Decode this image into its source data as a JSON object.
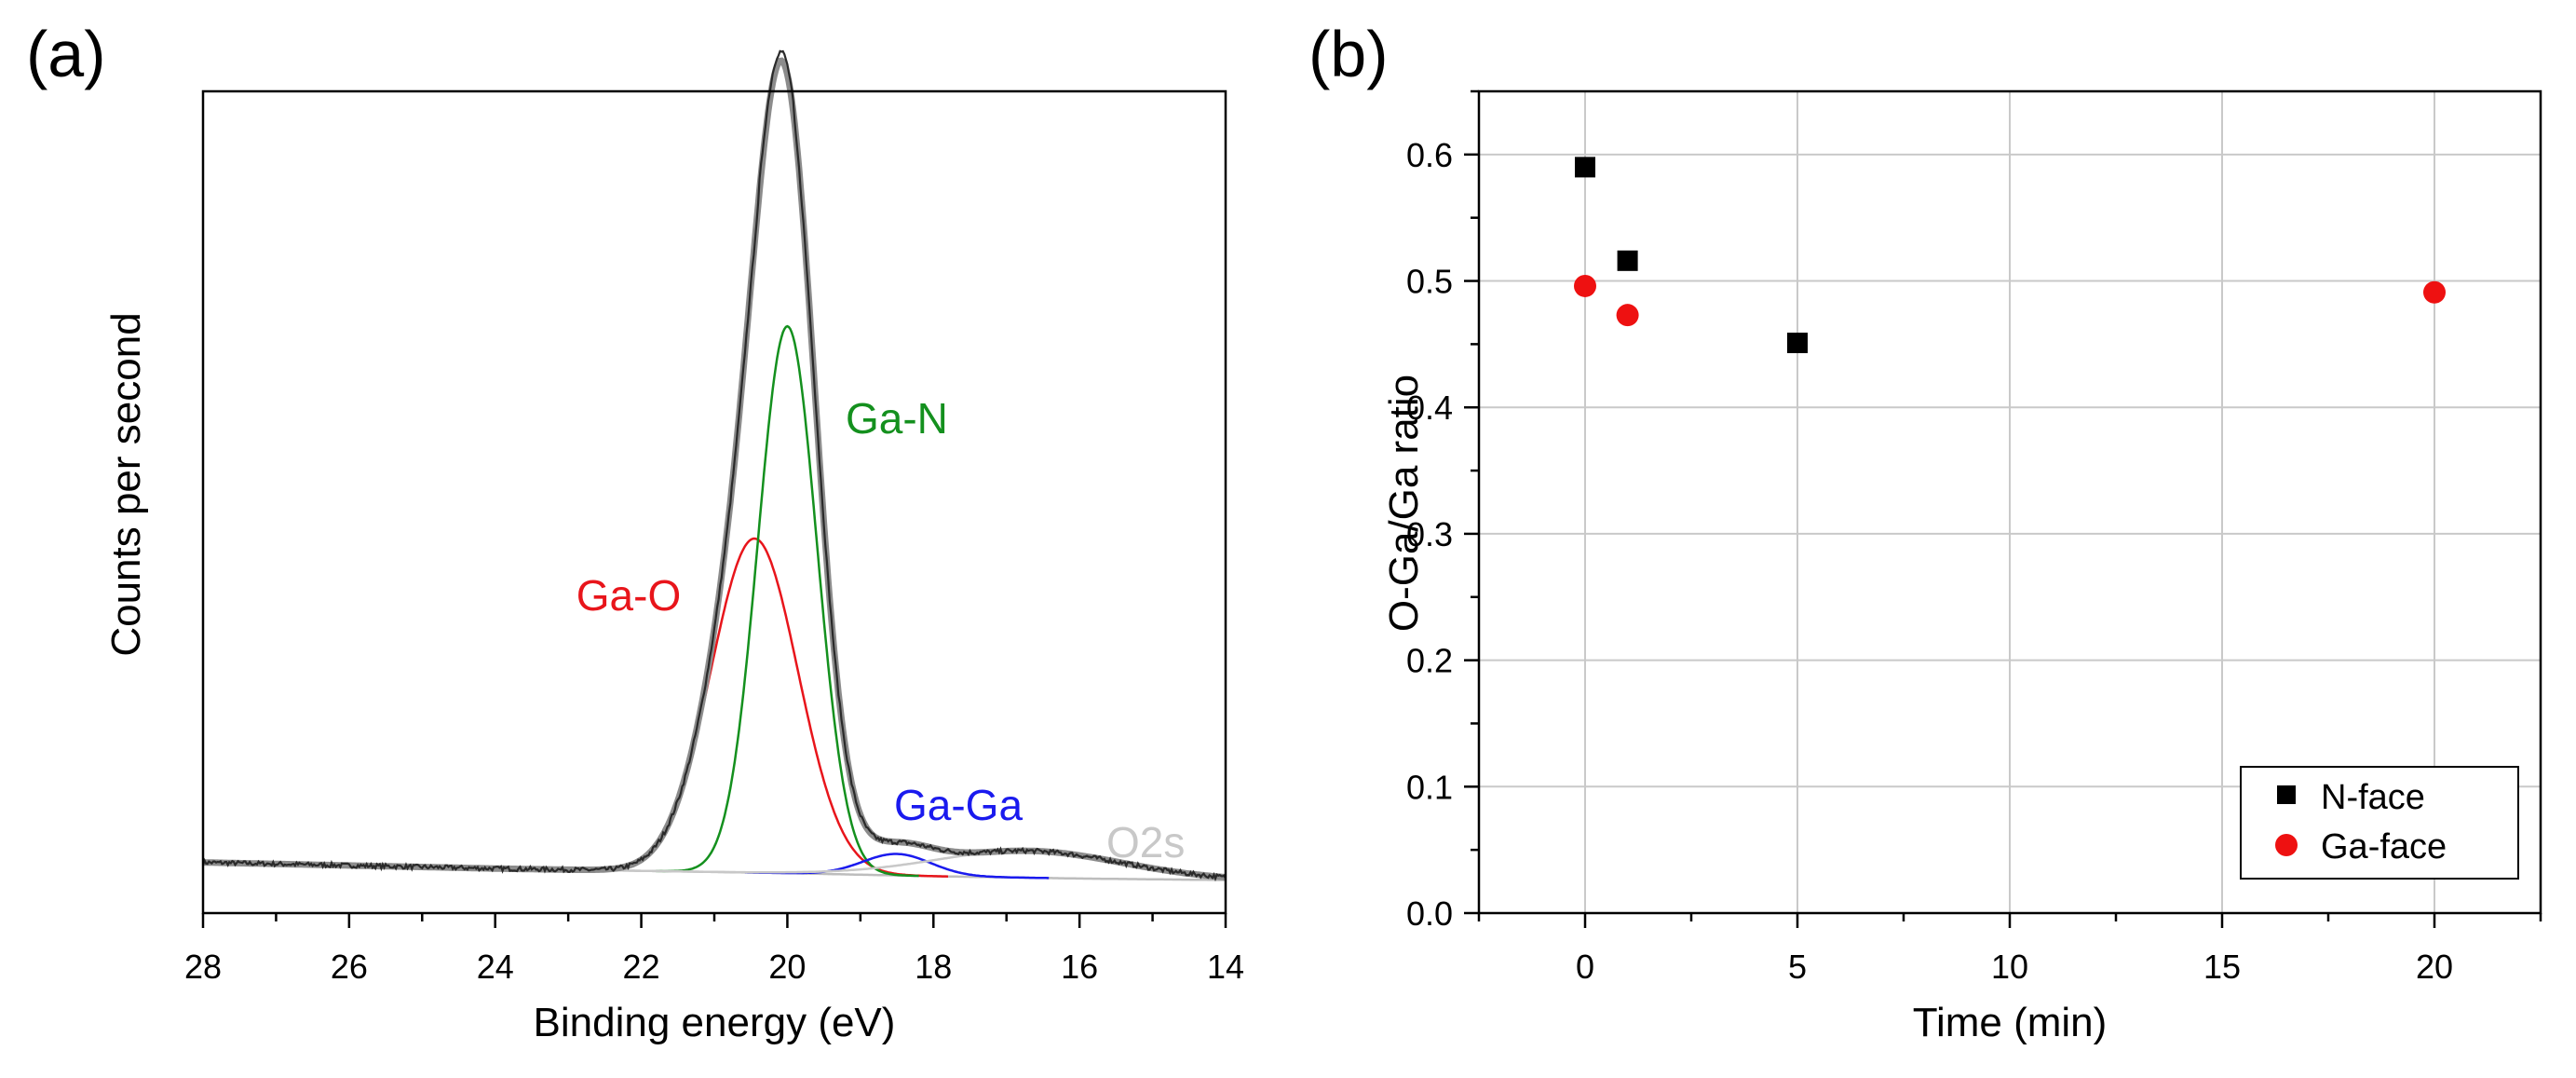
{
  "figure": {
    "panel_a_label": "(a)",
    "panel_b_label": "(b)"
  },
  "colors": {
    "envelope": "#8c8c8c",
    "raw": "#2a2a2a",
    "ga_o": "#e8151b",
    "ga_n": "#14901e",
    "ga_ga": "#1a1aee",
    "o2s": "#c8c8c8",
    "background": "#bdbdbd",
    "grid": "#c9c9c9",
    "n_face": "#000000",
    "ga_face": "#ee1111"
  },
  "chart_data": [
    {
      "type": "line",
      "panel": "(a)",
      "title": "",
      "xlabel": "Binding energy (eV)",
      "ylabel": "Counts per second",
      "xlim": [
        28,
        14
      ],
      "x_reversed": true,
      "ylim": [
        0,
        1.07
      ],
      "y_ticks_shown": false,
      "grid": false,
      "xticks": [
        28,
        26,
        24,
        22,
        20,
        18,
        16,
        14
      ],
      "xtick_labels": [
        "28",
        "26",
        "24",
        "22",
        "20",
        "18",
        "16",
        "14"
      ],
      "baseline": {
        "name": "background",
        "x": [
          28,
          24,
          22,
          20,
          18,
          16,
          14
        ],
        "y": [
          0.066,
          0.058,
          0.055,
          0.052,
          0.048,
          0.045,
          0.043
        ]
      },
      "components": [
        {
          "name": "Ga-O",
          "label": "Ga-O",
          "center": 20.45,
          "fwhm": 1.4,
          "height": 0.435
        },
        {
          "name": "Ga-N",
          "label": "Ga-N",
          "center": 20.0,
          "fwhm": 0.95,
          "height": 0.712
        },
        {
          "name": "Ga-Ga",
          "label": "Ga-Ga",
          "center": 18.5,
          "fwhm": 1.1,
          "height": 0.028
        },
        {
          "name": "O2s",
          "label": "O2s",
          "center": 16.7,
          "fwhm": 3.0,
          "height": 0.035
        }
      ],
      "series": [
        {
          "name": "measured",
          "description": "raw spectrum with noise, follows envelope"
        },
        {
          "name": "envelope",
          "description": "sum of components plus background"
        },
        {
          "name": "Ga-O"
        },
        {
          "name": "Ga-N"
        },
        {
          "name": "Ga-Ga"
        },
        {
          "name": "O2s"
        },
        {
          "name": "background"
        }
      ],
      "annotations": [
        {
          "text": "Ga-N",
          "series": "Ga-N"
        },
        {
          "text": "Ga-O",
          "series": "Ga-O"
        },
        {
          "text": "Ga-Ga",
          "series": "Ga-Ga"
        },
        {
          "text": "O2s",
          "series": "O2s"
        }
      ]
    },
    {
      "type": "scatter",
      "panel": "(b)",
      "title": "",
      "xlabel": "Time (min)",
      "ylabel": "O-Ga/Ga ratio",
      "xlim": [
        -2.5,
        22.5
      ],
      "ylim": [
        0.0,
        0.65
      ],
      "grid": true,
      "xticks": [
        0,
        5,
        10,
        15,
        20
      ],
      "xtick_labels": [
        "0",
        "5",
        "10",
        "15",
        "20"
      ],
      "yticks": [
        0.0,
        0.1,
        0.2,
        0.3,
        0.4,
        0.5,
        0.6
      ],
      "ytick_labels": [
        "0.0",
        "0.1",
        "0.2",
        "0.3",
        "0.4",
        "0.5",
        "0.6"
      ],
      "legend_position": "bottom-right",
      "series": [
        {
          "name": "N-face",
          "marker": "square",
          "x": [
            0,
            1,
            5
          ],
          "y": [
            0.59,
            0.516,
            0.451
          ]
        },
        {
          "name": "Ga-face",
          "marker": "circle",
          "x": [
            0,
            1,
            20
          ],
          "y": [
            0.496,
            0.473,
            0.491
          ]
        }
      ]
    }
  ]
}
